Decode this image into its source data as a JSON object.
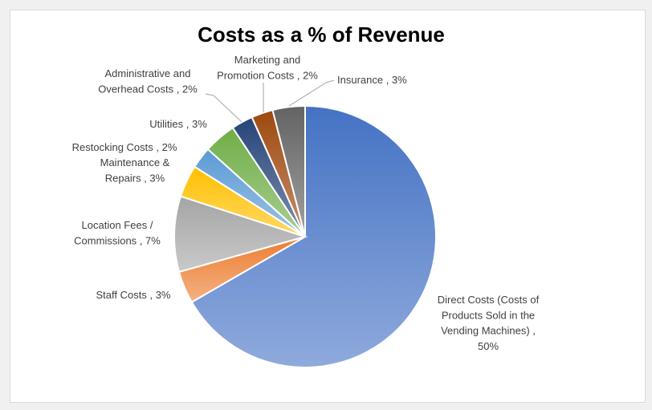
{
  "chart_data": {
    "type": "pie",
    "title": "Costs as a % of Revenue",
    "slices": [
      {
        "label": "Direct Costs (Costs of Products Sold in the Vending Machines)",
        "value": 50,
        "display": "50%",
        "color": "#4472C4"
      },
      {
        "label": "Staff Costs",
        "value": 3,
        "display": "3%",
        "color": "#ED7D31"
      },
      {
        "label": "Location Fees / Commissions",
        "value": 7,
        "display": "7%",
        "color": "#A5A5A5"
      },
      {
        "label": "Maintenance & Repairs",
        "value": 3,
        "display": "3%",
        "color": "#FFC000"
      },
      {
        "label": "Restocking Costs",
        "value": 2,
        "display": "2%",
        "color": "#5B9BD5"
      },
      {
        "label": "Utilities",
        "value": 3,
        "display": "3%",
        "color": "#70AD47"
      },
      {
        "label": "Administrative and Overhead Costs",
        "value": 2,
        "display": "2%",
        "color": "#264478"
      },
      {
        "label": "Marketing and Promotion Costs",
        "value": 2,
        "display": "2%",
        "color": "#9E480E"
      },
      {
        "label": "Insurance",
        "value": 3,
        "display": "3%",
        "color": "#636363"
      }
    ],
    "start_angle": "top",
    "direction": "clockwise",
    "legend": "none",
    "data_labels": "category name and value, outside"
  }
}
